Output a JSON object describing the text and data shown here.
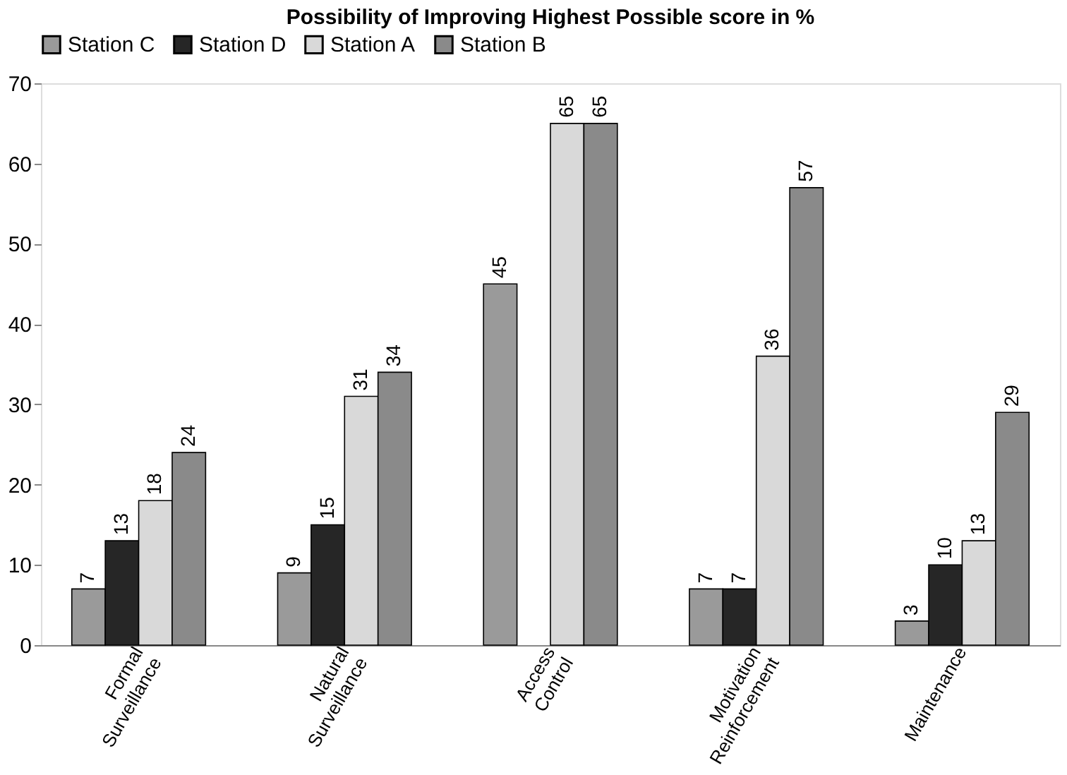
{
  "chart_data": {
    "type": "bar",
    "title": "Possibility of Improving Highest Possible  score in %",
    "categories": [
      "Formal Surveillance",
      "Natural Surveillance",
      "Access Control",
      "Motivation Reinforcement",
      "Maintenance"
    ],
    "series": [
      {
        "name": "Station C",
        "color": "#9a9a9a",
        "values": [
          7,
          9,
          45,
          7,
          3
        ]
      },
      {
        "name": "Station D",
        "color": "#262626",
        "values": [
          13,
          15,
          null,
          7,
          10
        ]
      },
      {
        "name": "Station A",
        "color": "#d9d9d9",
        "values": [
          18,
          31,
          65,
          36,
          13
        ]
      },
      {
        "name": "Station B",
        "color": "#8a8a8a",
        "values": [
          24,
          34,
          65,
          57,
          29
        ]
      }
    ],
    "ylim": [
      0,
      70
    ],
    "yticks": [
      0,
      10,
      20,
      30,
      40,
      50,
      60,
      70
    ],
    "grid": false,
    "legend": "top",
    "data_labels": true
  }
}
